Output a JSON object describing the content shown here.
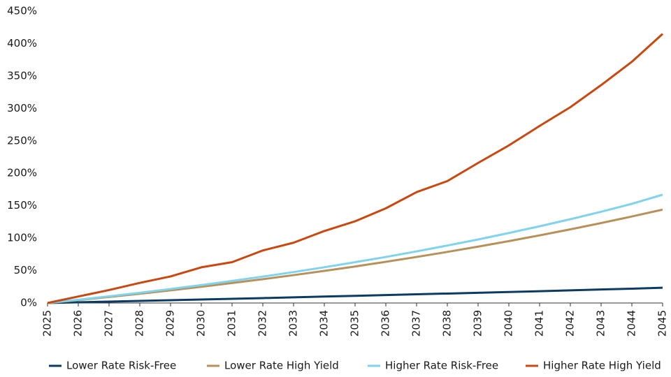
{
  "chart_data": {
    "type": "line",
    "categories": [
      "2025",
      "2026",
      "2027",
      "2028",
      "2029",
      "2030",
      "2031",
      "2032",
      "2033",
      "2034",
      "2035",
      "2036",
      "2037",
      "2038",
      "2039",
      "2040",
      "2041",
      "2042",
      "2043",
      "2044",
      "2045"
    ],
    "series": [
      {
        "name": "Lower Rate Risk-Free",
        "color": "#0b3a63",
        "values": [
          0,
          1.1,
          2.1,
          3.2,
          4.3,
          5.4,
          6.5,
          7.6,
          8.7,
          9.9,
          11.0,
          12.2,
          13.4,
          14.6,
          15.8,
          17.0,
          18.2,
          19.5,
          20.8,
          22.1,
          23.5
        ]
      },
      {
        "name": "Lower Rate High Yield",
        "color": "#b8915a",
        "values": [
          0,
          4.5,
          9.3,
          14.3,
          19.5,
          25,
          30.8,
          36.7,
          43,
          49.5,
          56.3,
          63.5,
          71,
          78.8,
          86.9,
          95.4,
          104.3,
          113.6,
          123.3,
          133.4,
          144
        ]
      },
      {
        "name": "Higher Rate Risk-Free",
        "color": "#7fd3ec",
        "values": [
          0,
          5,
          10.3,
          15.8,
          21.6,
          27.6,
          34,
          40.7,
          47.7,
          55.1,
          62.9,
          71,
          79.6,
          88.6,
          98,
          107.9,
          118.3,
          129.2,
          140.7,
          153,
          167
        ]
      },
      {
        "name": "Higher Rate High Yield",
        "color": "#c9480f",
        "values": [
          0,
          10,
          20,
          31,
          41,
          55,
          63,
          81,
          93,
          111,
          126,
          146,
          171,
          188,
          216,
          243,
          273,
          302,
          336,
          372,
          415
        ]
      }
    ],
    "ylim": [
      0,
      450
    ],
    "yticks": [
      {
        "value": 0,
        "label": "0%"
      },
      {
        "value": 50,
        "label": "50%"
      },
      {
        "value": 100,
        "label": "100%"
      },
      {
        "value": 150,
        "label": "150%"
      },
      {
        "value": 200,
        "label": "200%"
      },
      {
        "value": 250,
        "label": "250%"
      },
      {
        "value": 300,
        "label": "300%"
      },
      {
        "value": 350,
        "label": "350%"
      },
      {
        "value": 400,
        "label": "400%"
      },
      {
        "value": 450,
        "label": "450%"
      }
    ],
    "legend": "bottom"
  }
}
